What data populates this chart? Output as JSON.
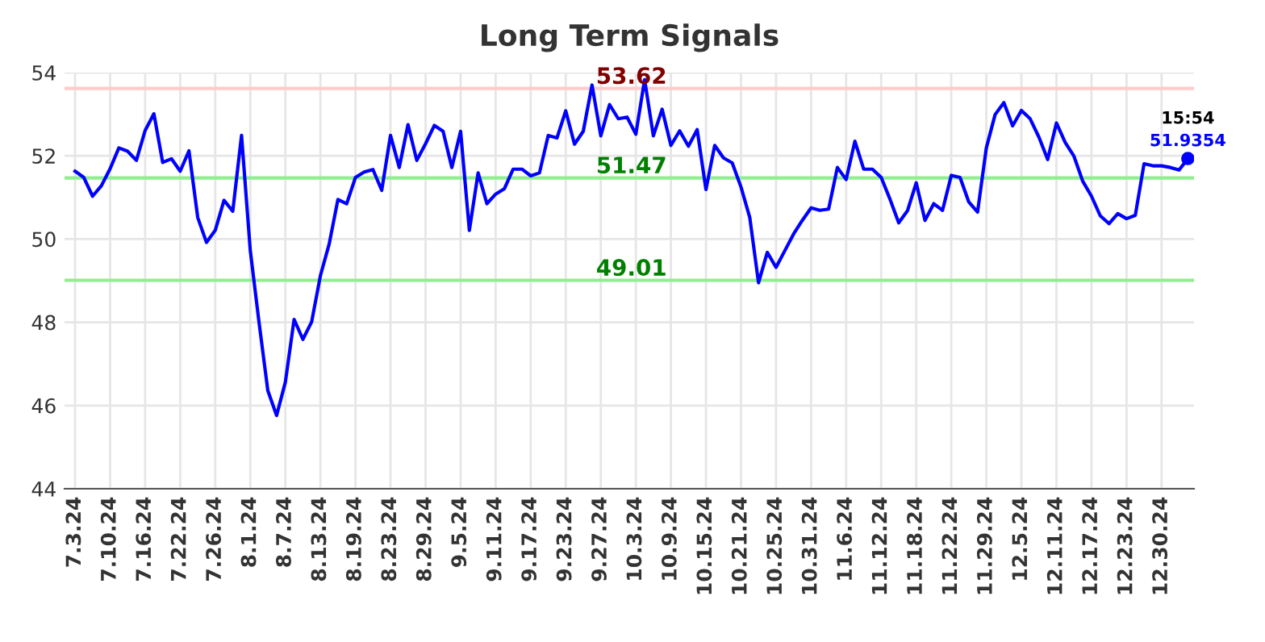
{
  "chart_data": {
    "type": "line",
    "title": "Long Term Signals",
    "categories": [
      "7.3.24",
      null,
      null,
      null,
      "7.10.24",
      null,
      null,
      null,
      "7.16.24",
      null,
      null,
      null,
      "7.22.24",
      null,
      null,
      null,
      "7.26.24",
      null,
      null,
      null,
      "8.1.24",
      null,
      null,
      null,
      "8.7.24",
      null,
      null,
      null,
      "8.13.24",
      null,
      null,
      null,
      "8.19.24",
      null,
      null,
      null,
      "8.23.24",
      null,
      null,
      null,
      "8.29.24",
      null,
      null,
      null,
      "9.5.24",
      null,
      null,
      null,
      "9.11.24",
      null,
      null,
      null,
      "9.17.24",
      null,
      null,
      null,
      "9.23.24",
      null,
      null,
      null,
      "9.27.24",
      null,
      null,
      null,
      "10.3.24",
      null,
      null,
      null,
      "10.9.24",
      null,
      null,
      null,
      "10.15.24",
      null,
      null,
      null,
      "10.21.24",
      null,
      null,
      null,
      "10.25.24",
      null,
      null,
      null,
      "10.31.24",
      null,
      null,
      null,
      "11.6.24",
      null,
      null,
      null,
      "11.12.24",
      null,
      null,
      null,
      "11.18.24",
      null,
      null,
      null,
      "11.22.24",
      null,
      null,
      null,
      "11.29.24",
      null,
      null,
      null,
      "12.5.24",
      null,
      null,
      null,
      "12.11.24",
      null,
      null,
      null,
      "12.17.24",
      null,
      null,
      null,
      "12.23.24",
      null,
      null,
      null,
      "12.30.24",
      null,
      null,
      null
    ],
    "series": [
      {
        "color": "#0000ff",
        "values": [
          51.63,
          51.48,
          51.03,
          51.28,
          51.69,
          52.19,
          52.11,
          51.89,
          52.61,
          53.01,
          51.84,
          51.93,
          51.63,
          52.12,
          50.52,
          49.92,
          50.21,
          50.93,
          50.67,
          52.49,
          49.72,
          47.99,
          46.36,
          45.76,
          46.56,
          48.07,
          47.59,
          48.01,
          49.12,
          49.88,
          50.95,
          50.85,
          51.48,
          51.61,
          51.67,
          51.17,
          52.49,
          51.72,
          52.75,
          51.89,
          52.29,
          52.73,
          52.59,
          51.72,
          52.59,
          50.21,
          51.59,
          50.85,
          51.08,
          51.21,
          51.68,
          51.68,
          51.52,
          51.59,
          52.49,
          52.43,
          53.08,
          52.28,
          52.59,
          53.7,
          52.48,
          53.23,
          52.89,
          52.93,
          52.52,
          53.83,
          52.48,
          53.12,
          52.25,
          52.6,
          52.23,
          52.63,
          51.19,
          52.25,
          51.95,
          51.83,
          51.25,
          50.52,
          48.95,
          49.68,
          49.32,
          49.72,
          50.12,
          50.45,
          50.75,
          50.69,
          50.72,
          51.72,
          51.43,
          52.35,
          51.68,
          51.68,
          51.48,
          50.96,
          50.39,
          50.68,
          51.35,
          50.45,
          50.85,
          50.69,
          51.53,
          51.48,
          50.89,
          50.65,
          52.19,
          52.99,
          53.28,
          52.72,
          53.09,
          52.89,
          52.45,
          51.91,
          52.79,
          52.32,
          51.99,
          51.39,
          51.03,
          50.56,
          50.37,
          50.61,
          50.49,
          50.57,
          51.81,
          51.76,
          51.76,
          51.72,
          51.66,
          51.9354
        ]
      }
    ],
    "ylim": [
      44,
      54
    ],
    "yticks": [
      44,
      46,
      48,
      50,
      52,
      54
    ],
    "grid": true,
    "legend": false,
    "marker": "none",
    "line_style": "solid",
    "ref_lines": [
      {
        "axis": "y",
        "value": 53.62,
        "label": "53.62",
        "color": "#ffcccc"
      },
      {
        "axis": "y",
        "value": 51.47,
        "label": "51.47",
        "color": "#90ee90"
      },
      {
        "axis": "y",
        "value": 49.01,
        "label": "49.01",
        "color": "#90ee90"
      }
    ],
    "annotations": [
      {
        "text": "15:54",
        "y": 51.9354
      },
      {
        "text": "51.9354",
        "y": 51.9354
      }
    ]
  }
}
